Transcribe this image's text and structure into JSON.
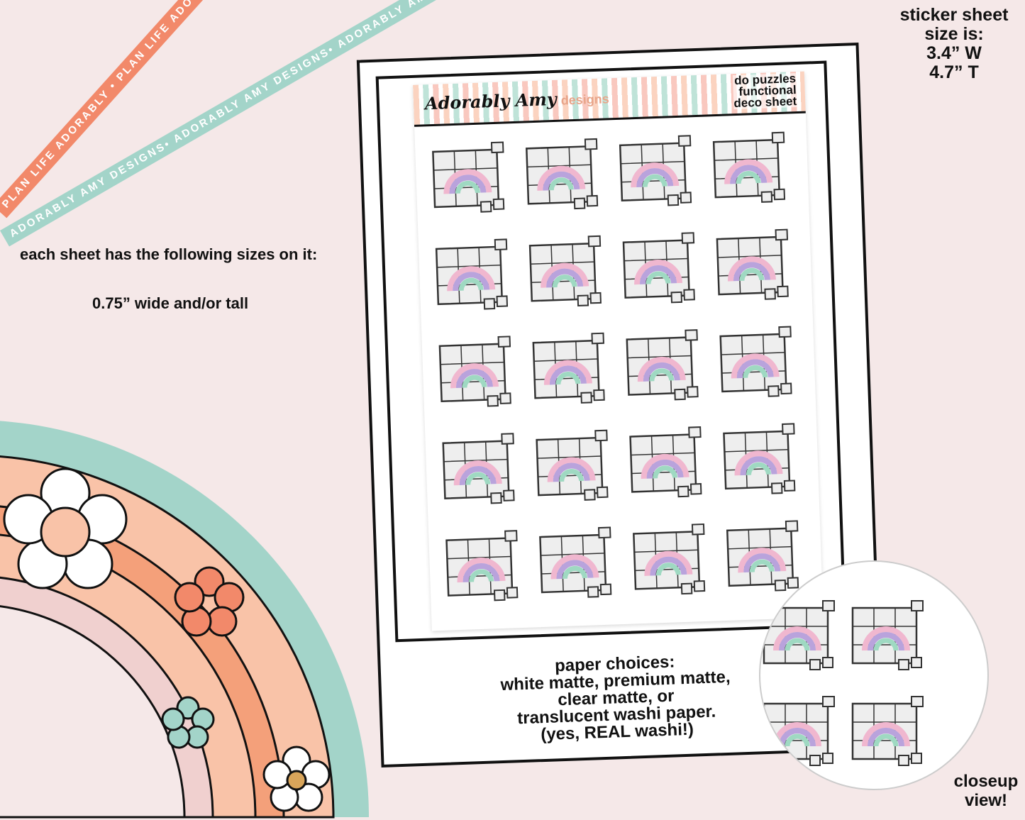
{
  "ribbons": {
    "coral": "PLAN LIFE ADORABLY • PLAN LIFE ADORABLY • PLAN LIFE ADORABLY",
    "teal": "ADORABLY AMY DESIGNS• ADORABLY AMY DESIGNS• ADORABLY AMY DESIGNS"
  },
  "left": {
    "sizes_heading": "each sheet has the following sizes on it:",
    "size": "0.75” wide and/or tall"
  },
  "size_info": {
    "line1": "sticker sheet",
    "line2": "size is:",
    "line3": "3.4” W",
    "line4": "4.7” T"
  },
  "sheet": {
    "logo": "Adorably Amy",
    "logo_suffix": "designs",
    "title_lines": [
      "do puzzles",
      "functional",
      "deco sheet"
    ],
    "sticker_count": 20,
    "sticker_icon": "rainbow-puzzle-icon"
  },
  "paper": {
    "lines": [
      "paper choices:",
      "white matte, premium matte,",
      "clear matte, or",
      "translucent washi paper.",
      "(yes, REAL washi!)"
    ]
  },
  "closeup": {
    "line1": "closeup",
    "line2": "view!"
  },
  "colors": {
    "background": "#f5e8e8",
    "coral": "#f2896a",
    "teal": "#a3d4c9",
    "peach": "#f9c3a8",
    "pink": "#f0d0cf",
    "purple": "#b9a3dc"
  }
}
